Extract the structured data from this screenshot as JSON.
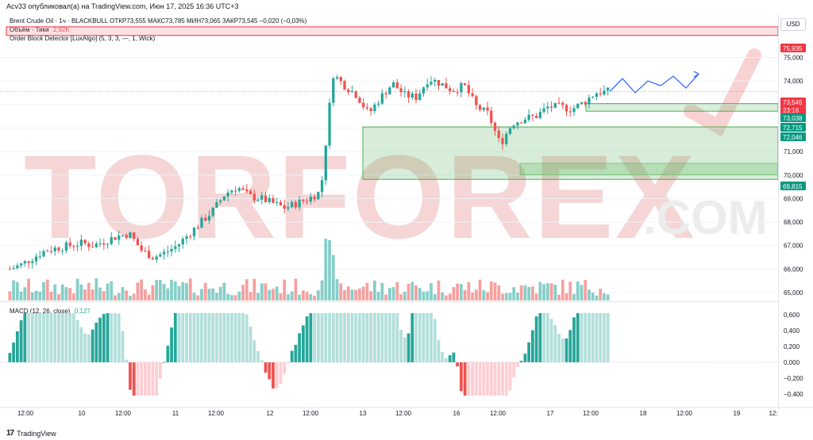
{
  "header": {
    "published_by": "Acv33 опубликовал(а) на TradingView.com, Июн 17, 2025 16:36 UTC+3"
  },
  "legend": {
    "symbol_line": "Brent Crude Oil · 1ч · BLACKBULL  ОТКР73,555  МАКС73,785  МИН73,065  ЗАКР73,545  −0,020 (−0,03%)",
    "volume_label": "Объём · Тики",
    "volume_value": "2,92K",
    "indicator_line": "Order Block Detector [LuxAlgo] (5, 3, 3, —, 1, Wick)",
    "macd_label": "MACD (12, 26, close)",
    "macd_value": "0,127"
  },
  "price_axis": {
    "currency": "USD",
    "ticks": [
      "75,000",
      "74,000",
      "73,000",
      "72,000",
      "71,000",
      "70,000",
      "69,000",
      "68,000",
      "67,000",
      "66,000",
      "65,000"
    ],
    "tags": [
      {
        "text": "75,935",
        "color": "#f23645"
      },
      {
        "text": "73,545",
        "color": "#f23645"
      },
      {
        "text": "23:16",
        "color": "#f23645"
      },
      {
        "text": "73,038",
        "color": "#089981"
      },
      {
        "text": "72,715",
        "color": "#089981"
      },
      {
        "text": "72,046",
        "color": "#089981"
      },
      {
        "text": "69,815",
        "color": "#089981"
      }
    ]
  },
  "macd_axis": {
    "ticks": [
      "0,600",
      "0,400",
      "0,200",
      "0,000",
      "−0,200",
      "−0,400"
    ]
  },
  "time_axis": {
    "ticks": [
      "12:00",
      "10",
      "12:00",
      "11",
      "12:00",
      "12",
      "12:00",
      "13",
      "12:00",
      "16",
      "12:00",
      "17",
      "12:00",
      "18",
      "12:00",
      "19",
      "12:"
    ]
  },
  "watermark": {
    "line1": "TORFOREX",
    "line2": ".COM"
  },
  "footer": {
    "brand": "TradingView"
  },
  "colors": {
    "up": "#26a69a",
    "down": "#ef5350",
    "zone_green": "#4caf50",
    "zone_red": "#f23645",
    "forecast": "#2962ff"
  },
  "chart_data": {
    "type": "candlestick",
    "title": "Brent Crude Oil · 1ч · BLACKBULL",
    "ylim": [
      64.8,
      76.6
    ],
    "x": [
      "12:00",
      "10",
      "12:00",
      "11",
      "12:00",
      "12",
      "12:00",
      "13",
      "12:00",
      "16",
      "12:00",
      "17",
      "12:00"
    ],
    "close_path": [
      66.0,
      66.2,
      66.5,
      66.8,
      66.9,
      67.0,
      67.1,
      67.0,
      67.2,
      67.4,
      67.5,
      66.8,
      66.5,
      66.7,
      67.0,
      67.5,
      68.0,
      68.5,
      69.2,
      69.5,
      69.1,
      69.0,
      68.8,
      68.6,
      68.8,
      69.0,
      69.3,
      74.3,
      73.8,
      73.4,
      72.6,
      73.3,
      73.9,
      73.4,
      73.3,
      74.1,
      73.9,
      73.6,
      73.8,
      72.9,
      72.6,
      71.3,
      72.2,
      72.4,
      72.5,
      72.9,
      72.9,
      72.8,
      73.1,
      73.5,
      73.55
    ],
    "order_blocks": [
      {
        "top": 76.1,
        "bottom": 75.935,
        "type": "bearish"
      },
      {
        "top": 72.046,
        "bottom": 69.815,
        "type": "bullish"
      },
      {
        "top": 73.038,
        "bottom": 72.715,
        "type": "bullish"
      }
    ],
    "forecast": [
      73.55,
      74.1,
      73.5,
      74.0,
      73.8,
      74.2,
      73.7,
      74.3
    ]
  }
}
